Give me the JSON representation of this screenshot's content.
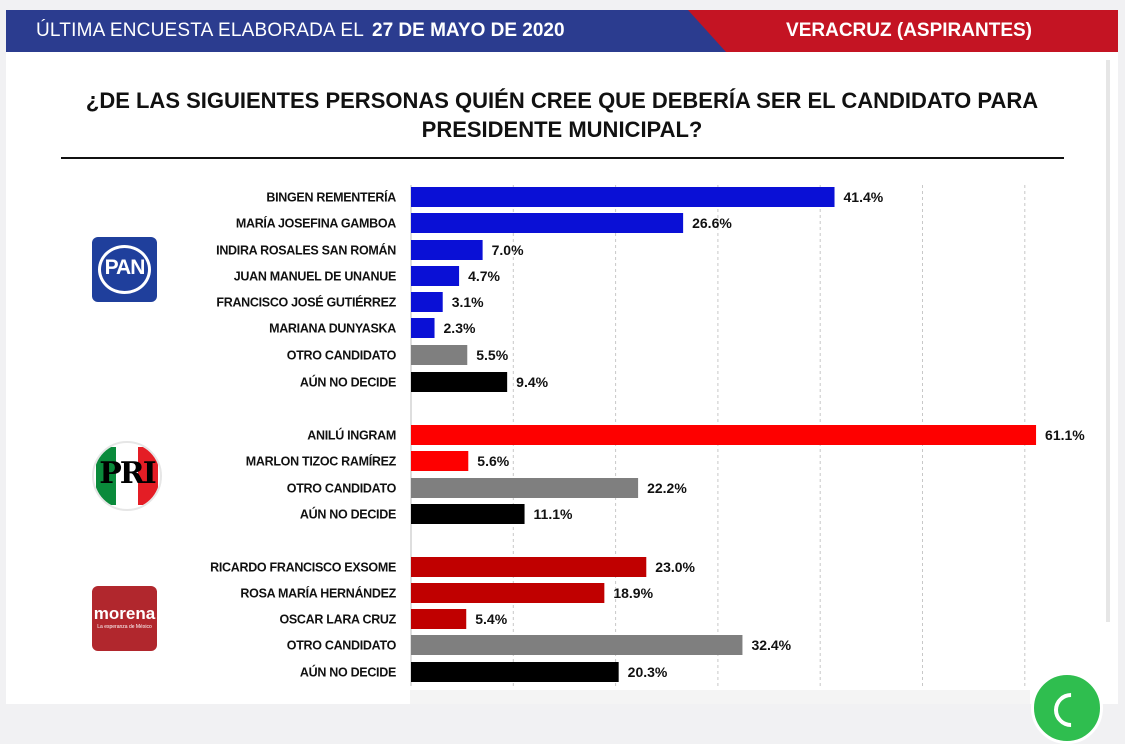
{
  "header": {
    "label": "ÚLTIMA ENCUESTA ELABORADA EL",
    "date": "27 DE MAYO DE 2020",
    "region": "VERACRUZ (ASPIRANTES)",
    "colors": {
      "blue": "#2b3c8f",
      "red": "#c41423"
    }
  },
  "question": {
    "line1": "¿DE LAS SIGUIENTES PERSONAS QUIÉN CREE QUE DEBERÍA SER EL CANDIDATO PARA",
    "line2": "PRESIDENTE MUNICIPAL?"
  },
  "logos": {
    "pan": {
      "icon": "pan-party-logo",
      "text": "PAN"
    },
    "pri": {
      "icon": "pri-party-logo",
      "text": "PRI"
    },
    "morena": {
      "icon": "morena-party-logo",
      "text": "morena",
      "subtext": "La esperanza de México"
    }
  },
  "floating_icon": "whatsapp-icon",
  "chart_data": {
    "type": "bar",
    "orientation": "horizontal",
    "title": "",
    "xlabel": "",
    "ylabel": "",
    "xlim": [
      0,
      60
    ],
    "grid": "vertical dashed",
    "value_suffix": "%",
    "groups": [
      {
        "party": "PAN",
        "bars": [
          {
            "label": "BINGEN REMENTERÍA",
            "value": 41.4,
            "display": "41.4%",
            "color": "#0a10d6"
          },
          {
            "label": "MARÍA JOSEFINA GAMBOA",
            "value": 26.6,
            "display": "26.6%",
            "color": "#0a10d6"
          },
          {
            "label": "INDIRA ROSALES SAN ROMÁN",
            "value": 7.0,
            "display": "7.0%",
            "color": "#0a10d6"
          },
          {
            "label": "JUAN MANUEL DE UNANUE",
            "value": 4.7,
            "display": "4.7%",
            "color": "#0a10d6"
          },
          {
            "label": "FRANCISCO JOSÉ GUTIÉRREZ",
            "value": 3.1,
            "display": "3.1%",
            "color": "#0a10d6"
          },
          {
            "label": "MARIANA DUNYASKA",
            "value": 2.3,
            "display": "2.3%",
            "color": "#0a10d6"
          },
          {
            "label": "OTRO CANDIDATO",
            "value": 5.5,
            "display": "5.5%",
            "color": "#7f7f7f"
          },
          {
            "label": "AÚN NO DECIDE",
            "value": 9.4,
            "display": "9.4%",
            "color": "#000000"
          }
        ]
      },
      {
        "party": "PRI",
        "bars": [
          {
            "label": "ANILÚ INGRAM",
            "value": 61.1,
            "display": "61.1%",
            "color": "#fe0000"
          },
          {
            "label": "MARLON TIZOC RAMÍREZ",
            "value": 5.6,
            "display": "5.6%",
            "color": "#fe0000"
          },
          {
            "label": "OTRO CANDIDATO",
            "value": 22.2,
            "display": "22.2%",
            "color": "#7f7f7f"
          },
          {
            "label": "AÚN NO DECIDE",
            "value": 11.1,
            "display": "11.1%",
            "color": "#000000"
          }
        ]
      },
      {
        "party": "MORENA",
        "bars": [
          {
            "label": "RICARDO FRANCISCO EXSOME",
            "value": 23.0,
            "display": "23.0%",
            "color": "#c00000"
          },
          {
            "label": "ROSA MARÍA HERNÁNDEZ",
            "value": 18.9,
            "display": "18.9%",
            "color": "#c00000"
          },
          {
            "label": "OSCAR LARA CRUZ",
            "value": 5.4,
            "display": "5.4%",
            "color": "#c00000"
          },
          {
            "label": "OTRO CANDIDATO",
            "value": 32.4,
            "display": "32.4%",
            "color": "#7f7f7f"
          },
          {
            "label": "AÚN NO DECIDE",
            "value": 20.3,
            "display": "20.3%",
            "color": "#000000"
          }
        ]
      }
    ]
  }
}
